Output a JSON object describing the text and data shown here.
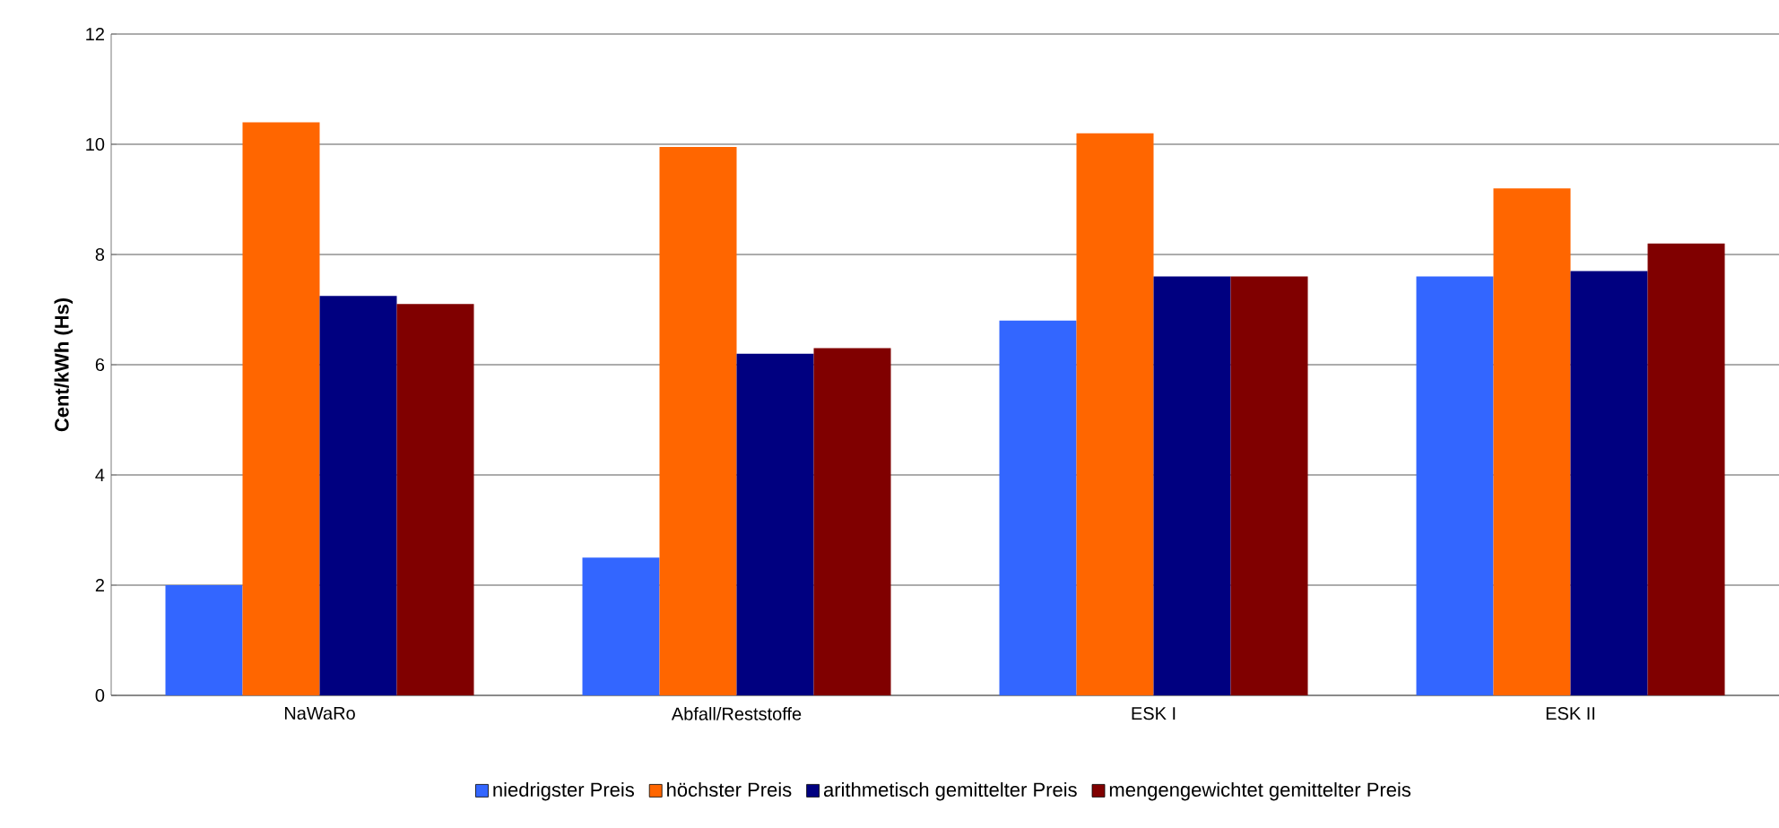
{
  "chart_data": {
    "type": "bar",
    "ylabel": "Cent/kWh (Hs)",
    "categories": [
      "NaWaRo",
      "Abfall/Reststoffe",
      "ESK I",
      "ESK II"
    ],
    "series": [
      {
        "name": "niedrigster Preis",
        "color": "#3366ff",
        "values": [
          2.0,
          2.5,
          6.8,
          7.6
        ]
      },
      {
        "name": "höchster Preis",
        "color": "#ff6600",
        "values": [
          10.4,
          9.95,
          10.2,
          9.2
        ]
      },
      {
        "name": "arithmetisch gemittelter Preis",
        "color": "#000080",
        "values": [
          7.25,
          6.2,
          7.6,
          7.7
        ]
      },
      {
        "name": "mengengewichtet gemittelter Preis",
        "color": "#800000",
        "values": [
          7.1,
          6.3,
          7.6,
          8.2
        ]
      }
    ],
    "ylim": [
      0,
      12
    ],
    "yticks": [
      0,
      2,
      4,
      6,
      8,
      10,
      12
    ],
    "grid": "y",
    "legend": "bottom"
  }
}
